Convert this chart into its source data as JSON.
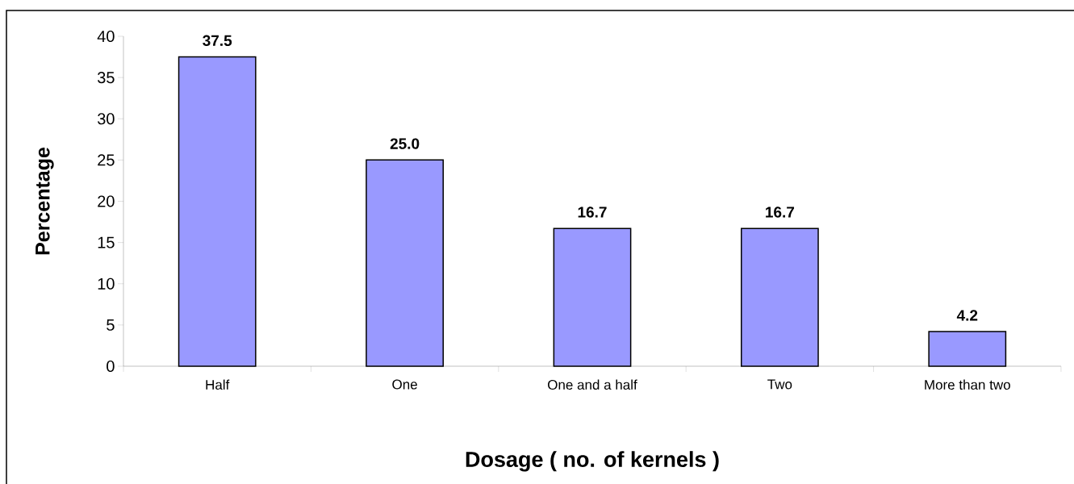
{
  "chart_data": {
    "type": "bar",
    "xlabel": "Dosage ( no. of kernels )",
    "ylabel": "Percentage",
    "categories": [
      "Half",
      "One",
      "One and a half",
      "Two",
      "More than two"
    ],
    "values": [
      37.5,
      25.0,
      16.7,
      16.7,
      4.2
    ],
    "value_labels": [
      "37.5",
      "25.0",
      "16.7",
      "16.7",
      "4.2"
    ],
    "color": "#9999ff",
    "ylim": [
      0,
      40
    ],
    "yticks": [
      0,
      5,
      10,
      15,
      20,
      25,
      30,
      35,
      40
    ],
    "grid": false
  }
}
